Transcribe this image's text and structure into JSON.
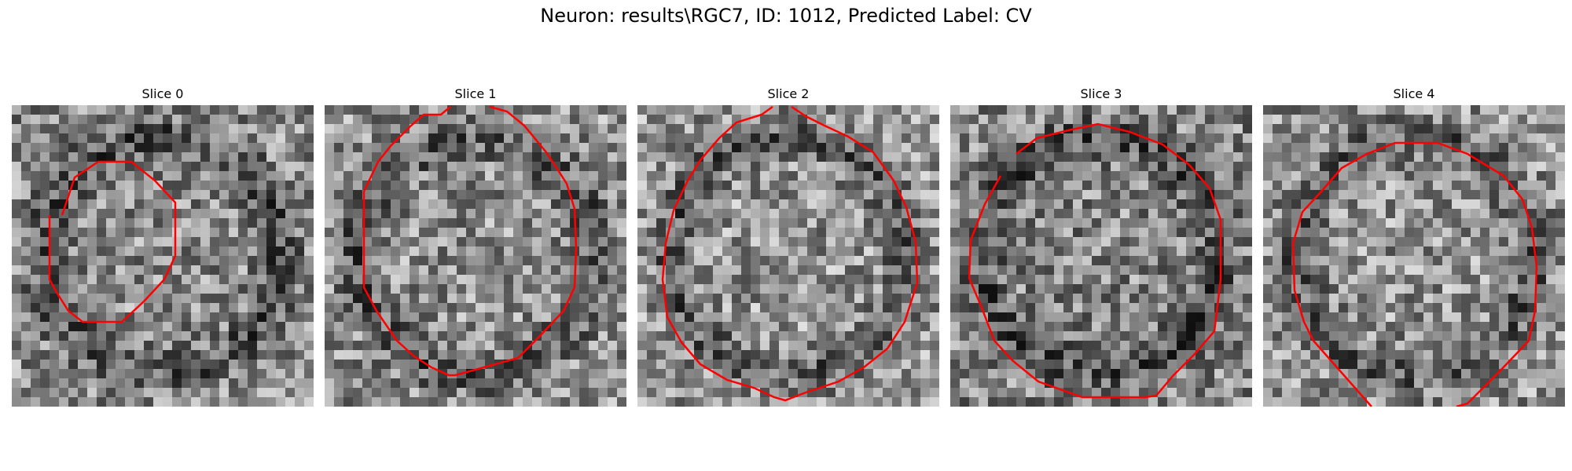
{
  "figure": {
    "title": "Neuron: results\\RGC7, ID: 1012, Predicted Label: CV"
  },
  "panels": [
    {
      "title": "Slice 0",
      "seed": 11,
      "base": 140,
      "contour_color": "#ff0000"
    },
    {
      "title": "Slice 1",
      "seed": 23,
      "base": 145,
      "contour_color": "#ff0000"
    },
    {
      "title": "Slice 2",
      "seed": 37,
      "base": 150,
      "contour_color": "#ff0000"
    },
    {
      "title": "Slice 3",
      "seed": 41,
      "base": 135,
      "contour_color": "#ff0000"
    },
    {
      "title": "Slice 4",
      "seed": 53,
      "base": 148,
      "contour_color": "#ff0000"
    }
  ]
}
